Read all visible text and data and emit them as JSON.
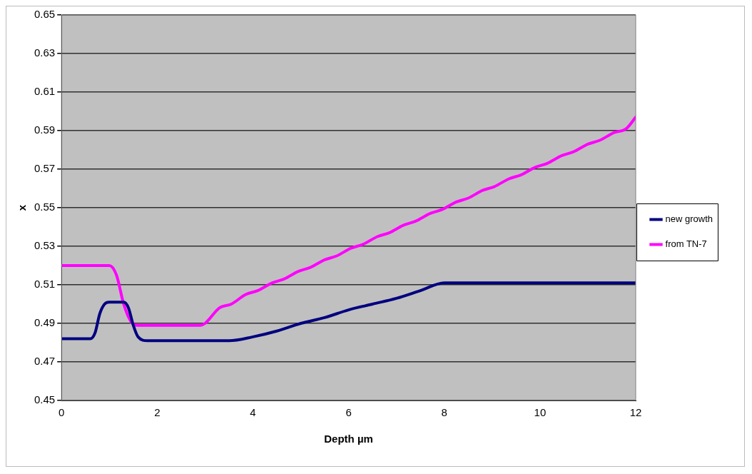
{
  "chart_data": {
    "type": "line",
    "xlabel": "Depth µm",
    "ylabel": "x",
    "xlim": [
      0,
      12
    ],
    "xticks": [
      0,
      2,
      4,
      6,
      8,
      10,
      12
    ],
    "ylim": [
      0.45,
      0.65
    ],
    "yticks": [
      {
        "value": 0.45,
        "label": "0.45"
      },
      {
        "value": 0.47,
        "label": "0.47"
      },
      {
        "value": 0.49,
        "label": "0.49"
      },
      {
        "value": 0.51,
        "label": "0.51"
      },
      {
        "value": 0.53,
        "label": "0.53"
      },
      {
        "value": 0.55,
        "label": "0.55"
      },
      {
        "value": 0.57,
        "label": "0.57"
      },
      {
        "value": 0.59,
        "label": "0.59"
      },
      {
        "value": 0.61,
        "label": "0.61"
      },
      {
        "value": 0.63,
        "label": "0.63"
      },
      {
        "value": 0.65,
        "label": "0.65"
      }
    ],
    "grid": "y",
    "legend": "right",
    "marker": "none",
    "line_style": "solid",
    "series": [
      {
        "name": "new growth",
        "color": "#000080",
        "x": [
          0,
          0.6,
          0.7,
          0.8,
          0.9,
          1.0,
          1.3,
          1.4,
          1.5,
          1.6,
          1.8,
          3.5,
          4.0,
          4.5,
          5.0,
          5.5,
          6.0,
          6.5,
          7.0,
          7.5,
          8.0,
          12
        ],
        "values": [
          0.482,
          0.482,
          0.485,
          0.495,
          0.5,
          0.501,
          0.501,
          0.498,
          0.489,
          0.483,
          0.481,
          0.481,
          0.483,
          0.486,
          0.49,
          0.493,
          0.497,
          0.5,
          0.503,
          0.507,
          0.511,
          0.511
        ]
      },
      {
        "name": "from TN-7",
        "color": "#ff00ff",
        "x": [
          0,
          1.0,
          1.15,
          1.3,
          1.45,
          1.6,
          2.9,
          3.0,
          3.3,
          3.55,
          3.85,
          4.1,
          4.4,
          4.65,
          4.95,
          5.2,
          5.5,
          5.75,
          6.05,
          6.3,
          6.6,
          6.85,
          7.15,
          7.4,
          7.7,
          7.95,
          8.25,
          8.5,
          8.8,
          9.05,
          9.35,
          9.6,
          9.9,
          10.15,
          10.45,
          10.7,
          11.0,
          11.25,
          11.55,
          11.8,
          12.0
        ],
        "values": [
          0.52,
          0.52,
          0.515,
          0.5,
          0.491,
          0.489,
          0.489,
          0.49,
          0.498,
          0.5,
          0.505,
          0.507,
          0.511,
          0.513,
          0.517,
          0.519,
          0.523,
          0.525,
          0.529,
          0.531,
          0.535,
          0.537,
          0.541,
          0.543,
          0.547,
          0.549,
          0.553,
          0.555,
          0.559,
          0.561,
          0.565,
          0.567,
          0.571,
          0.573,
          0.577,
          0.579,
          0.583,
          0.585,
          0.589,
          0.591,
          0.597
        ]
      }
    ]
  }
}
